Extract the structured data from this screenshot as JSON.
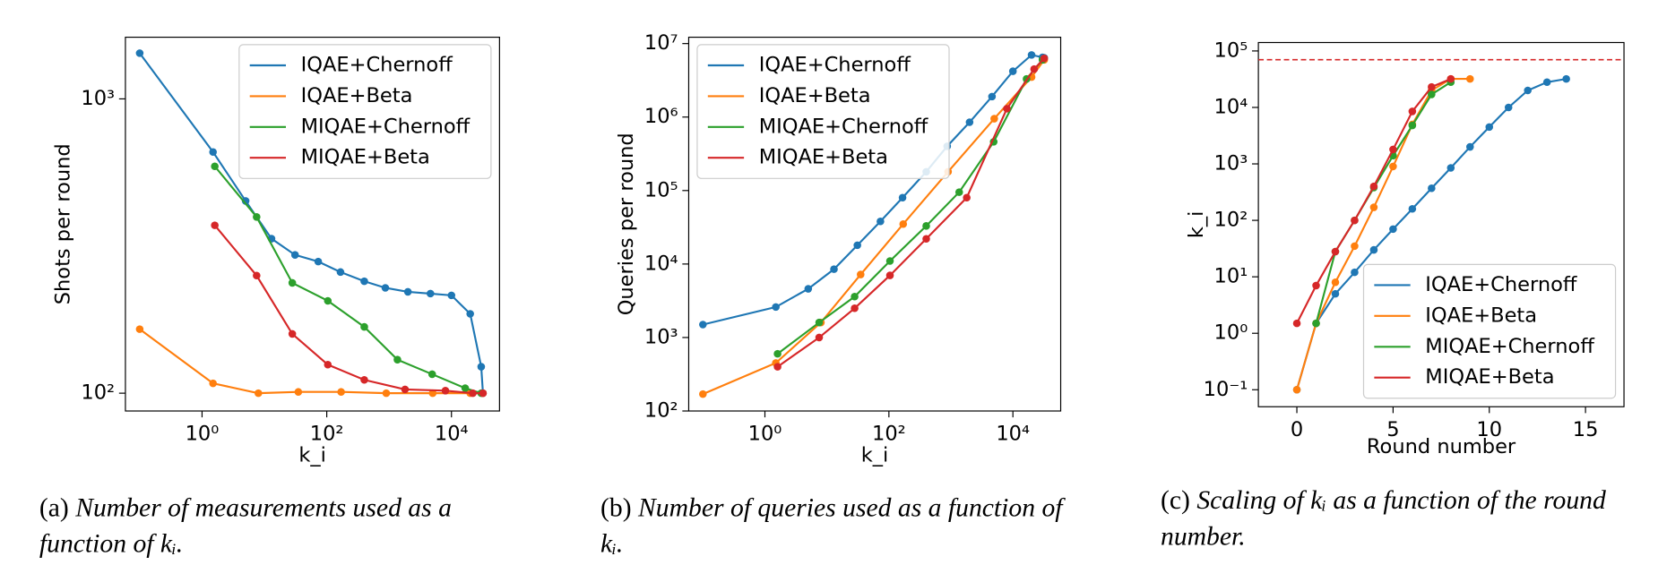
{
  "chart_data": [
    {
      "type": "line",
      "xlabel": "k_i",
      "ylabel": "Shots per round",
      "xscale": "log",
      "yscale": "log",
      "xlim": [
        0.059,
        59000
      ],
      "ylim": [
        87,
        1620
      ],
      "xticks": [
        {
          "value": 1,
          "label": "10⁰"
        },
        {
          "value": 100,
          "label": "10²"
        },
        {
          "value": 10000,
          "label": "10⁴"
        }
      ],
      "yticks": [
        {
          "value": 100,
          "label": "10²"
        },
        {
          "value": 1000,
          "label": "10³"
        }
      ],
      "legend": "upper right",
      "series": [
        {
          "name": "IQAE+Chernoff",
          "color": "#1f77b4",
          "x": [
            0.1,
            1.5,
            5,
            13,
            31,
            73,
            166,
            400,
            870,
            2000,
            4600,
            10000,
            20000,
            30000,
            32000
          ],
          "values": [
            1430,
            660,
            450,
            335,
            295,
            280,
            258,
            240,
            228,
            221,
            218,
            215,
            186,
            123,
            100
          ]
        },
        {
          "name": "IQAE+Beta",
          "color": "#ff7f0e",
          "x": [
            0.1,
            1.5,
            8,
            35,
            170,
            900,
            5000,
            20000,
            32000
          ],
          "values": [
            165,
            108,
            100,
            101,
            101,
            100,
            100,
            100,
            100
          ]
        },
        {
          "name": "MIQAE+Chernoff",
          "color": "#2ca02c",
          "x": [
            1.6,
            7.5,
            28,
            104,
            400,
            1360,
            4900,
            16600,
            30000
          ],
          "values": [
            590,
            397,
            237,
            206,
            168,
            130,
            116,
            104,
            100
          ]
        },
        {
          "name": "MIQAE+Beta",
          "color": "#d62728",
          "x": [
            1.6,
            7.5,
            28,
            104,
            400,
            1800,
            8000,
            22000,
            32000
          ],
          "values": [
            372,
            251,
            159,
            125,
            111,
            103,
            102,
            100,
            100
          ]
        }
      ]
    },
    {
      "type": "line",
      "xlabel": "k_i",
      "ylabel": "Queries per round",
      "xscale": "log",
      "yscale": "log",
      "xlim": [
        0.059,
        59000
      ],
      "ylim": [
        100,
        12200000
      ],
      "xticks": [
        {
          "value": 1,
          "label": "10⁰"
        },
        {
          "value": 100,
          "label": "10²"
        },
        {
          "value": 10000,
          "label": "10⁴"
        }
      ],
      "yticks": [
        {
          "value": 100,
          "label": "10²"
        },
        {
          "value": 1000,
          "label": "10³"
        },
        {
          "value": 10000,
          "label": "10⁴"
        },
        {
          "value": 100000,
          "label": "10⁵"
        },
        {
          "value": 1000000,
          "label": "10⁶"
        },
        {
          "value": 10000000,
          "label": "10⁷"
        }
      ],
      "legend": "upper left",
      "series": [
        {
          "name": "IQAE+Chernoff",
          "color": "#1f77b4",
          "x": [
            0.1,
            1.5,
            5,
            13,
            31,
            73,
            166,
            400,
            870,
            2000,
            4600,
            10000,
            20000,
            30000,
            32000
          ],
          "values": [
            1500,
            2600,
            4600,
            8500,
            18000,
            38000,
            80000,
            180000,
            400000,
            850000,
            1900000,
            4200000,
            7000000,
            6500000,
            6400000
          ]
        },
        {
          "name": "IQAE+Beta",
          "color": "#ff7f0e",
          "x": [
            0.1,
            1.5,
            8,
            35,
            170,
            900,
            5000,
            20000,
            32000
          ],
          "values": [
            170,
            450,
            1600,
            7200,
            35000,
            180000,
            950000,
            3500000,
            6000000
          ]
        },
        {
          "name": "MIQAE+Chernoff",
          "color": "#2ca02c",
          "x": [
            1.6,
            7.5,
            28,
            104,
            400,
            1360,
            4900,
            16600,
            30000
          ],
          "values": [
            600,
            1600,
            3600,
            11000,
            33000,
            95000,
            460000,
            3300000,
            6000000
          ]
        },
        {
          "name": "MIQAE+Beta",
          "color": "#d62728",
          "x": [
            1.6,
            7.5,
            28,
            104,
            400,
            1800,
            8000,
            22000,
            32000
          ],
          "values": [
            400,
            1000,
            2500,
            7000,
            22000,
            80000,
            1300000,
            4500000,
            6300000
          ]
        }
      ]
    },
    {
      "type": "line",
      "xlabel": "Round number",
      "ylabel": "k_i",
      "xscale": "linear",
      "yscale": "log",
      "xlim": [
        -2,
        17
      ],
      "ylim": [
        0.05,
        141000
      ],
      "xticks": [
        0,
        5,
        10,
        15
      ],
      "yticks": [
        {
          "value": 0.1,
          "label": "10⁻¹"
        },
        {
          "value": 1,
          "label": "10⁰"
        },
        {
          "value": 10,
          "label": "10¹"
        },
        {
          "value": 100,
          "label": "10²"
        },
        {
          "value": 1000,
          "label": "10³"
        },
        {
          "value": 10000,
          "label": "10⁴"
        },
        {
          "value": 100000,
          "label": "10⁵"
        }
      ],
      "legend": "lower right",
      "hline": {
        "value": 70000,
        "color": "#d62728"
      },
      "series": [
        {
          "name": "IQAE+Chernoff",
          "color": "#1f77b4",
          "x": [
            0,
            1,
            2,
            3,
            4,
            5,
            6,
            7,
            8,
            9,
            10,
            11,
            12,
            13,
            14
          ],
          "values": [
            0.1,
            1.5,
            5,
            12,
            30,
            70,
            160,
            370,
            850,
            2000,
            4500,
            10000,
            20000,
            28000,
            32000
          ]
        },
        {
          "name": "IQAE+Beta",
          "color": "#ff7f0e",
          "x": [
            0,
            1,
            2,
            3,
            4,
            5,
            6,
            7,
            8,
            9
          ],
          "values": [
            0.1,
            1.5,
            8,
            35,
            170,
            900,
            5000,
            20000,
            32000,
            32000
          ]
        },
        {
          "name": "MIQAE+Chernoff",
          "color": "#2ca02c",
          "x": [
            1,
            2,
            3,
            4,
            5,
            6,
            7,
            8
          ],
          "values": [
            1.5,
            28,
            100,
            380,
            1400,
            4800,
            17000,
            28000
          ]
        },
        {
          "name": "MIQAE+Beta",
          "color": "#d62728",
          "x": [
            0,
            1,
            2,
            3,
            4,
            5,
            6,
            7,
            8
          ],
          "values": [
            1.5,
            7,
            28,
            100,
            400,
            1800,
            8500,
            23000,
            32000
          ]
        }
      ]
    }
  ],
  "captions": [
    {
      "label": "(a)",
      "text": "Number of measurements used as a function of kᵢ."
    },
    {
      "label": "(b)",
      "text": "Number of queries used as a function of kᵢ."
    },
    {
      "label": "(c)",
      "text": "Scaling of kᵢ as a function of the round number."
    }
  ]
}
